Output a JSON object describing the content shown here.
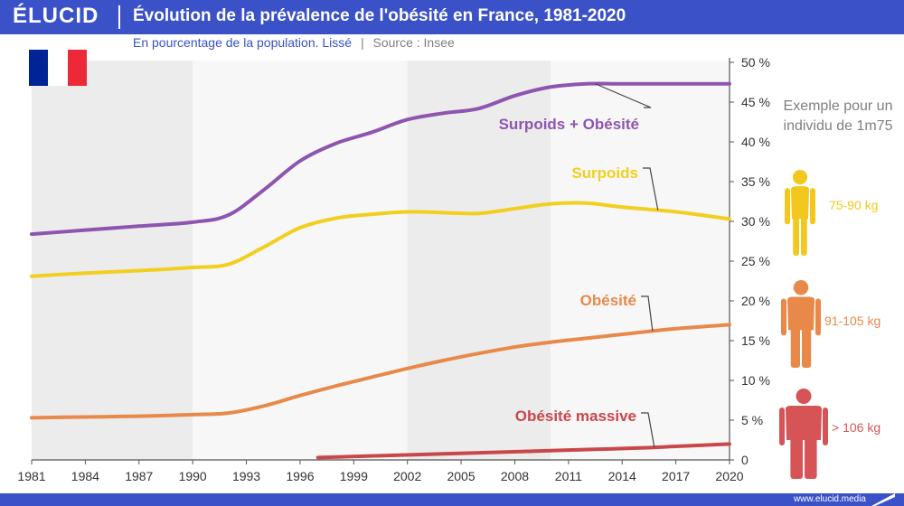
{
  "header": {
    "logo": "ÉLUCID",
    "title": "Évolution de la prévalence de l'obésité en France, 1981-2020",
    "subtitle_main": "En pourcentage de la population. Lissé",
    "subtitle_sep": "|",
    "subtitle_source": "Source : Insee"
  },
  "flag": {
    "colors": [
      "#002395",
      "#ffffff",
      "#ed2939"
    ],
    "icon": "france-flag-icon"
  },
  "side_panel": {
    "note": "Exemple pour un individu de 1m75",
    "figures": [
      {
        "label": "75-90 kg",
        "color": "#f2c81f",
        "icon": "slim-person-icon"
      },
      {
        "label": "91-105 kg",
        "color": "#e8894a",
        "icon": "overweight-person-icon"
      },
      {
        "label": "> 106 kg",
        "color": "#d65456",
        "icon": "obese-person-icon"
      }
    ]
  },
  "footer": {
    "url": "www.elucid.media"
  },
  "colors": {
    "brand": "#3a51c8",
    "band_dark": "#ececec",
    "band_light": "#f7f7f7"
  },
  "chart_data": {
    "type": "line",
    "title": "Évolution de la prévalence de l'obésité en France, 1981-2020",
    "subtitle": "En pourcentage de la population. Lissé",
    "xlim": [
      1981,
      2020
    ],
    "ylim": [
      0,
      50
    ],
    "x_ticks": [
      "1981",
      "1984",
      "1987",
      "1990",
      "1993",
      "1996",
      "1999",
      "2002",
      "2005",
      "2008",
      "2011",
      "2014",
      "2017",
      "2020"
    ],
    "y_ticks": [
      "0",
      "5 %",
      "10 %",
      "15 %",
      "20 %",
      "25 %",
      "30 %",
      "35 %",
      "40 %",
      "45 %",
      "50 %"
    ],
    "y_tick_values": [
      0,
      5,
      10,
      15,
      20,
      25,
      30,
      35,
      40,
      45,
      50
    ],
    "bands": [
      {
        "from": 1981,
        "to": 1990,
        "shade": "dark"
      },
      {
        "from": 1990,
        "to": 2002,
        "shade": "light"
      },
      {
        "from": 2002,
        "to": 2010,
        "shade": "dark"
      },
      {
        "from": 2010,
        "to": 2020,
        "shade": "light"
      }
    ],
    "series": [
      {
        "name": "Surpoids + Obésité",
        "color": "#8e55b0",
        "x": [
          1981,
          1984,
          1987,
          1990,
          1992,
          1994,
          1996,
          1998,
          2000,
          2002,
          2004,
          2006,
          2008,
          2010,
          2012,
          2014,
          2017,
          2020
        ],
        "values": [
          28.4,
          28.9,
          29.4,
          29.9,
          30.8,
          34.0,
          37.6,
          39.8,
          41.2,
          42.8,
          43.6,
          44.2,
          45.8,
          46.9,
          47.3,
          47.3,
          47.3,
          47.3
        ],
        "label_anchor_year": 2012.5
      },
      {
        "name": "Surpoids",
        "color": "#f2cf1f",
        "x": [
          1981,
          1984,
          1987,
          1990,
          1992,
          1994,
          1996,
          1998,
          2000,
          2002,
          2004,
          2006,
          2008,
          2010,
          2012,
          2014,
          2017,
          2020
        ],
        "values": [
          23.1,
          23.5,
          23.8,
          24.2,
          24.6,
          26.8,
          29.2,
          30.4,
          30.9,
          31.2,
          31.1,
          31.0,
          31.6,
          32.2,
          32.3,
          31.8,
          31.2,
          30.3
        ],
        "label_anchor_year": 2016
      },
      {
        "name": "Obésité",
        "color": "#e8894a",
        "x": [
          1981,
          1984,
          1987,
          1990,
          1992,
          1994,
          1996,
          1998,
          2000,
          2002,
          2004,
          2006,
          2008,
          2010,
          2012,
          2014,
          2017,
          2020
        ],
        "values": [
          5.3,
          5.4,
          5.5,
          5.7,
          5.9,
          6.8,
          8.1,
          9.3,
          10.4,
          11.5,
          12.5,
          13.4,
          14.2,
          14.8,
          15.3,
          15.8,
          16.5,
          17.0
        ],
        "label_anchor_year": 2015.7
      },
      {
        "name": "Obésité massive",
        "color": "#c9474a",
        "x": [
          1997,
          2000,
          2003,
          2006,
          2009,
          2012,
          2015,
          2017,
          2020
        ],
        "values": [
          0.3,
          0.5,
          0.7,
          0.9,
          1.1,
          1.3,
          1.5,
          1.7,
          2.0
        ],
        "label_anchor_year": 2015.8
      }
    ],
    "annotations": [
      {
        "text": "Surpoids + Obésité",
        "series": "Surpoids + Obésité"
      },
      {
        "text": "Surpoids",
        "series": "Surpoids"
      },
      {
        "text": "Obésité",
        "series": "Obésité"
      },
      {
        "text": "Obésité massive",
        "series": "Obésité massive"
      }
    ],
    "grid": false,
    "legend": "inline-labels"
  }
}
